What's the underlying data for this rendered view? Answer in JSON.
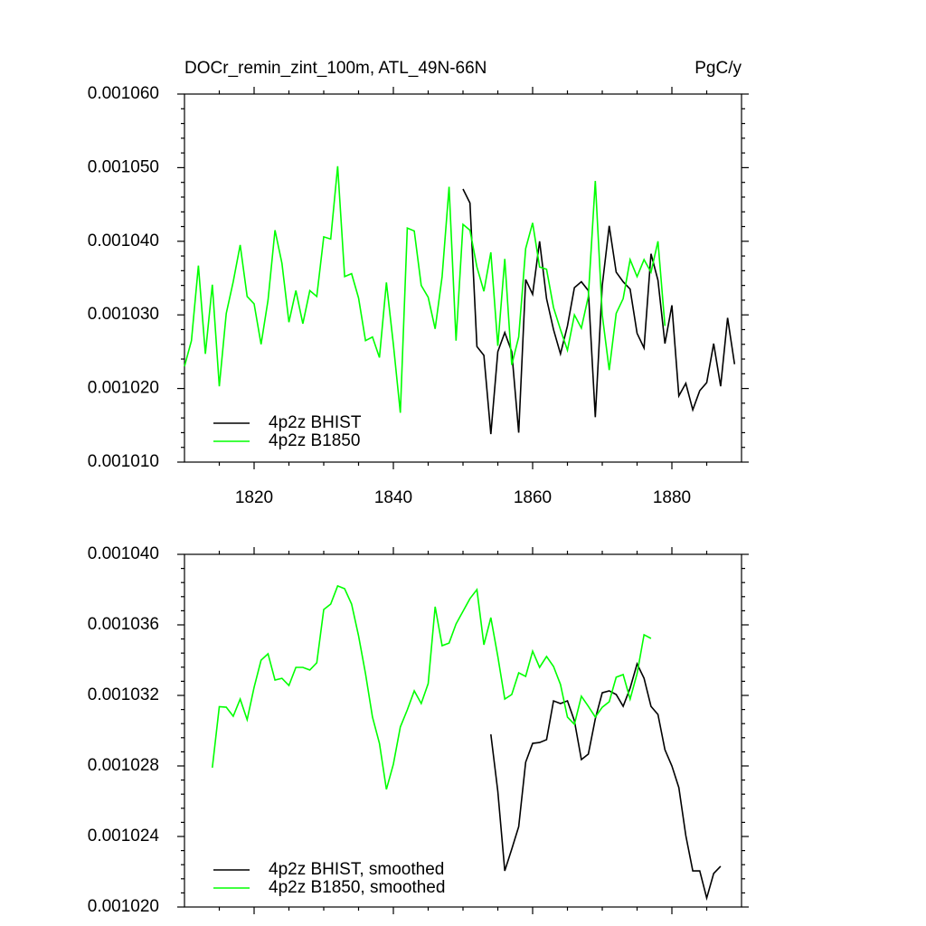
{
  "chart_data": [
    {
      "type": "line",
      "title": "DOCr_remin_zint_100m, ATL_49N-66N",
      "right_title": "PgC/y",
      "x": [
        1810,
        1811,
        1812,
        1813,
        1814,
        1815,
        1816,
        1817,
        1818,
        1819,
        1820,
        1821,
        1822,
        1823,
        1824,
        1825,
        1826,
        1827,
        1828,
        1829,
        1830,
        1831,
        1832,
        1833,
        1834,
        1835,
        1836,
        1837,
        1838,
        1839,
        1840,
        1841,
        1842,
        1843,
        1844,
        1845,
        1846,
        1847,
        1848,
        1849,
        1850,
        1851,
        1852,
        1853,
        1854,
        1855,
        1856,
        1857,
        1858,
        1859,
        1860,
        1861,
        1862,
        1863,
        1864,
        1865,
        1866,
        1867,
        1868,
        1869,
        1870,
        1871,
        1872,
        1873,
        1874,
        1875,
        1876,
        1877,
        1878,
        1879,
        1880,
        1881,
        1882,
        1883,
        1884,
        1885,
        1886,
        1887,
        1888,
        1889
      ],
      "series": [
        {
          "name": "4p2z BHIST",
          "color": "#000000",
          "values": [
            null,
            null,
            null,
            null,
            null,
            null,
            null,
            null,
            null,
            null,
            null,
            null,
            null,
            null,
            null,
            null,
            null,
            null,
            null,
            null,
            null,
            null,
            null,
            null,
            null,
            null,
            null,
            null,
            null,
            null,
            null,
            null,
            null,
            null,
            null,
            null,
            null,
            null,
            null,
            null,
            0.0010471,
            0.0010452,
            0.0010257,
            0.0010245,
            0.0010138,
            0.001025,
            0.0010276,
            0.001025,
            0.001014,
            0.0010348,
            0.0010328,
            0.00104,
            0.0010322,
            0.001028,
            0.0010247,
            0.0010285,
            0.0010337,
            0.0010345,
            0.0010333,
            0.0010161,
            0.001034,
            0.0010421,
            0.0010358,
            0.0010345,
            0.0010335,
            0.0010275,
            0.0010255,
            0.0010383,
            0.0010347,
            0.0010261,
            0.0010313,
            0.001019,
            0.0010207,
            0.0010171,
            0.0010197,
            0.0010208,
            0.0010261,
            0.0010203,
            0.0010296,
            0.0010233
          ]
        },
        {
          "name": "4p2z B1850",
          "color": "#00ff00",
          "values": [
            0.001023,
            0.0010265,
            0.0010367,
            0.0010247,
            0.0010341,
            0.0010203,
            0.0010302,
            0.0010345,
            0.0010395,
            0.0010325,
            0.0010315,
            0.001026,
            0.001032,
            0.0010415,
            0.001037,
            0.001029,
            0.0010333,
            0.0010288,
            0.0010333,
            0.0010325,
            0.0010406,
            0.0010403,
            0.0010502,
            0.0010352,
            0.0010356,
            0.0010323,
            0.0010265,
            0.001027,
            0.0010242,
            0.0010344,
            0.001026,
            0.0010167,
            0.0010418,
            0.0010414,
            0.001034,
            0.0010324,
            0.0010281,
            0.0010352,
            0.0010474,
            0.0010265,
            0.0010423,
            0.0010415,
            0.0010365,
            0.0010332,
            0.0010385,
            0.0010258,
            0.0010376,
            0.0010232,
            0.001027,
            0.001039,
            0.0010425,
            0.0010365,
            0.0010362,
            0.001031,
            0.001028,
            0.0010252,
            0.00103,
            0.0010282,
            0.0010325,
            0.0010482,
            0.00103,
            0.0010225,
            0.0010302,
            0.0010322,
            0.0010375,
            0.0010352,
            0.0010375,
            0.0010358,
            0.00104,
            0.0010285,
            null,
            null,
            null,
            null,
            null,
            null,
            null,
            null,
            null,
            null
          ]
        }
      ],
      "xlim": [
        1810,
        1890
      ],
      "xticks": [
        1820,
        1840,
        1860,
        1880
      ],
      "ylim": [
        0.00101,
        0.00106
      ],
      "yticks": [
        {
          "value": 0.00101,
          "label": "0.001010"
        },
        {
          "value": 0.00102,
          "label": "0.001020"
        },
        {
          "value": 0.00103,
          "label": "0.001030"
        },
        {
          "value": 0.00104,
          "label": "0.001040"
        },
        {
          "value": 0.00105,
          "label": "0.001050"
        },
        {
          "value": 0.00106,
          "label": "0.001060"
        }
      ],
      "legend": "lower left"
    },
    {
      "type": "line",
      "x": [
        1810,
        1811,
        1812,
        1813,
        1814,
        1815,
        1816,
        1817,
        1818,
        1819,
        1820,
        1821,
        1822,
        1823,
        1824,
        1825,
        1826,
        1827,
        1828,
        1829,
        1830,
        1831,
        1832,
        1833,
        1834,
        1835,
        1836,
        1837,
        1838,
        1839,
        1840,
        1841,
        1842,
        1843,
        1844,
        1845,
        1846,
        1847,
        1848,
        1849,
        1850,
        1851,
        1852,
        1853,
        1854,
        1855,
        1856,
        1857,
        1858,
        1859,
        1860,
        1861,
        1862,
        1863,
        1864,
        1865,
        1866,
        1867,
        1868,
        1869,
        1870,
        1871,
        1872,
        1873,
        1874,
        1875,
        1876,
        1877,
        1878,
        1879,
        1880,
        1881,
        1882,
        1883,
        1884,
        1885,
        1886,
        1887,
        1888,
        1889
      ],
      "series": [
        {
          "name": "4p2z BHIST, smoothed",
          "color": "#000000",
          "values": [
            null,
            null,
            null,
            null,
            null,
            null,
            null,
            null,
            null,
            null,
            null,
            null,
            null,
            null,
            null,
            null,
            null,
            null,
            null,
            null,
            null,
            null,
            null,
            null,
            null,
            null,
            null,
            null,
            null,
            null,
            null,
            null,
            null,
            null,
            null,
            null,
            null,
            null,
            null,
            null,
            null,
            null,
            null,
            null,
            0.00102979,
            0.00102656,
            0.00102205,
            0.00102328,
            0.00102456,
            0.00102821,
            0.00102928,
            0.00102933,
            0.00102949,
            0.00103169,
            0.00103154,
            0.00103169,
            0.00103056,
            0.00102836,
            0.00102867,
            0.00103067,
            0.00103215,
            0.00103226,
            0.00103205,
            0.00103138,
            0.00103241,
            0.00103379,
            0.00103297,
            0.00103138,
            0.00103092,
            0.00102892,
            0.001028,
            0.00102677,
            0.00102405,
            0.00102205,
            0.00102205,
            0.00102051,
            0.0010219,
            0.00102231,
            null,
            null
          ]
        },
        {
          "name": "4p2z B1850, smoothed",
          "color": "#00ff00",
          "values": [
            null,
            null,
            null,
            null,
            0.0010279,
            0.00103136,
            0.00103133,
            0.00103082,
            0.00103179,
            0.00103062,
            0.00103246,
            0.001034,
            0.00103436,
            0.00103287,
            0.00103297,
            0.00103256,
            0.00103359,
            0.00103359,
            0.00103344,
            0.00103385,
            0.00103687,
            0.00103718,
            0.00103821,
            0.00103805,
            0.00103718,
            0.00103538,
            0.00103323,
            0.00103077,
            0.00102928,
            0.00102667,
            0.0010281,
            0.00103021,
            0.00103118,
            0.00103226,
            0.00103154,
            0.00103267,
            0.00103703,
            0.00103482,
            0.00103497,
            0.00103605,
            0.00103677,
            0.00103749,
            0.001038,
            0.00103487,
            0.00103641,
            0.00103421,
            0.00103179,
            0.00103205,
            0.00103328,
            0.00103308,
            0.00103451,
            0.00103359,
            0.00103421,
            0.00103364,
            0.00103262,
            0.00103077,
            0.00103036,
            0.00103195,
            0.00103138,
            0.00103077,
            0.00103133,
            0.00103164,
            0.00103303,
            0.00103318,
            0.00103179,
            0.00103323,
            0.00103544,
            0.00103523,
            null,
            null,
            null,
            null,
            null,
            null,
            null,
            null,
            null,
            null,
            null,
            null
          ]
        }
      ],
      "xlim": [
        1810,
        1890
      ],
      "xticks": [
        1820,
        1840,
        1860,
        1880
      ],
      "ylim": [
        0.00102,
        0.00104
      ],
      "yticks": [
        {
          "value": 0.00102,
          "label": "0.001020"
        },
        {
          "value": 0.001024,
          "label": "0.001024"
        },
        {
          "value": 0.001028,
          "label": "0.001028"
        },
        {
          "value": 0.001032,
          "label": "0.001032"
        },
        {
          "value": 0.001036,
          "label": "0.001036"
        },
        {
          "value": 0.00104,
          "label": "0.001040"
        }
      ],
      "legend": "lower left"
    }
  ]
}
